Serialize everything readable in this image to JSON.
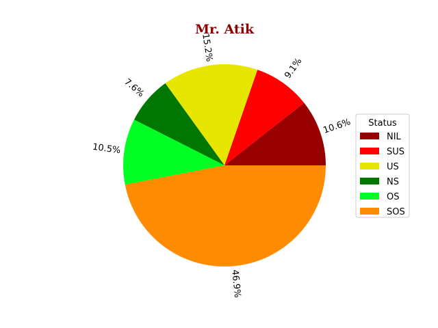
{
  "chart_data": {
    "type": "pie",
    "title": "Mr. Atik",
    "title_color": "#8b0000",
    "legend_title": "Status",
    "legend_position": "center-right",
    "slices": [
      {
        "label": "NIL",
        "value": 10.6,
        "pct_label": "10.6%",
        "color": "#990000"
      },
      {
        "label": "SUS",
        "value": 9.1,
        "pct_label": "9.1%",
        "color": "#ff0000"
      },
      {
        "label": "US",
        "value": 15.2,
        "pct_label": "15.2%",
        "color": "#e6e600"
      },
      {
        "label": "NS",
        "value": 7.6,
        "pct_label": "7.6%",
        "color": "#007700"
      },
      {
        "label": "OS",
        "value": 10.5,
        "pct_label": "10.5%",
        "color": "#00ff22"
      },
      {
        "label": "SOS",
        "value": 46.9,
        "pct_label": "46.9%",
        "color": "#ff8c00"
      }
    ]
  }
}
